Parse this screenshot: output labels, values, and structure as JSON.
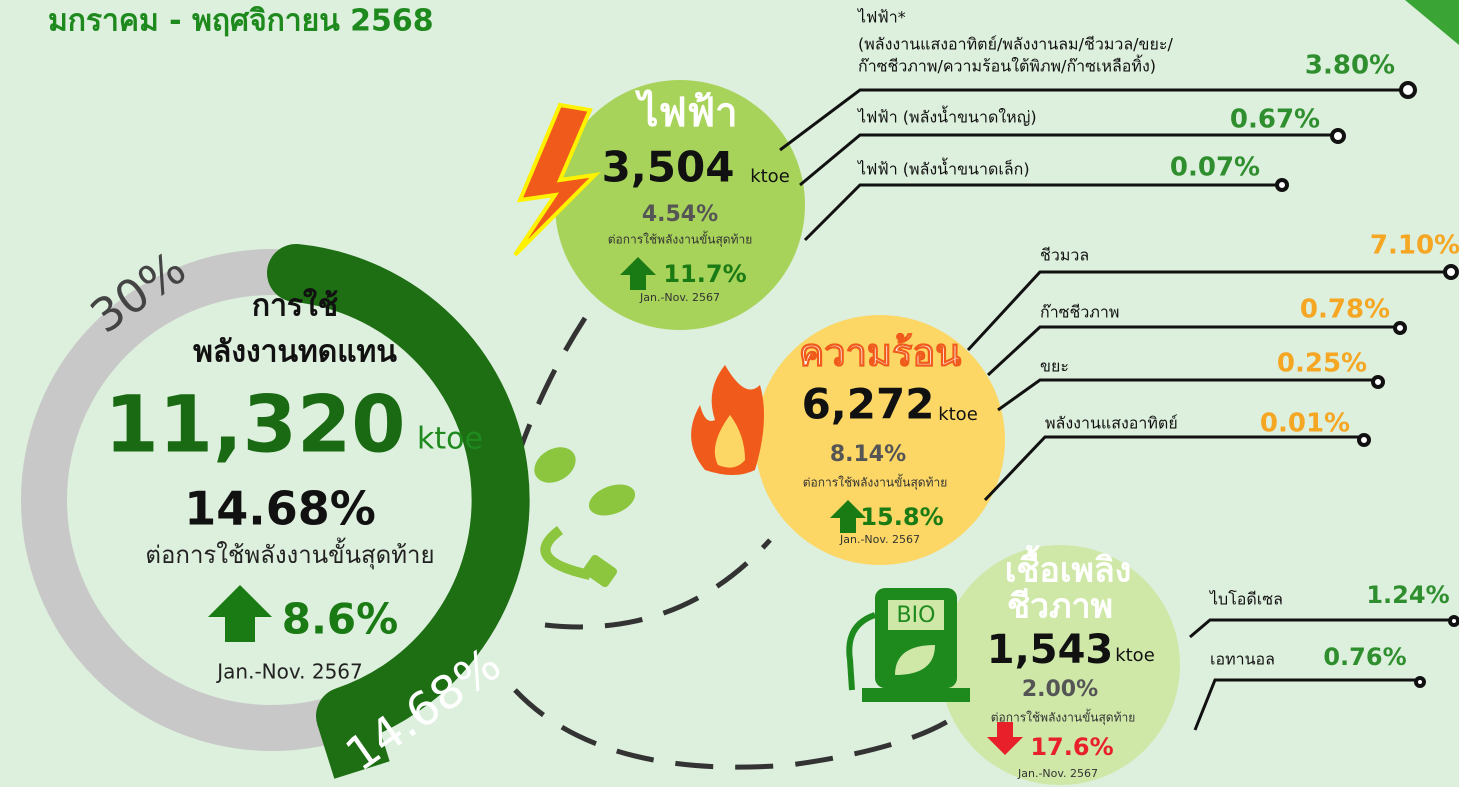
{
  "header": {
    "title": "มกราคม - พฤศจิกายน 2568"
  },
  "main": {
    "title_line1": "การใช้",
    "title_line2": "พลังงานทดแทน",
    "value": "11,320",
    "unit": "ktoe",
    "share": "14.68%",
    "share_label": "ต่อการใช้พลังงานขั้นสุดท้าย",
    "change": "8.6%",
    "period": "Jan.-Nov. 2567",
    "target_label": "30%",
    "ring_label": "14.68%"
  },
  "electricity": {
    "title": "ไฟฟ้า",
    "value": "3,504",
    "unit": "ktoe",
    "share": "4.54%",
    "share_label": "ต่อการใช้พลังงานขั้นสุดท้าย",
    "change": "11.7%",
    "period": "Jan.-Nov. 2567",
    "items": [
      {
        "label": [
          "ไฟฟ้า*",
          "(พลังงานแสงอาทิตย์/พลังงานลม/ชีวมวล/ขยะ/",
          "ก๊าซชีวภาพ/ความร้อนใต้พิภพ/ก๊าซเหลือทิ้ง)"
        ],
        "value": "3.80%"
      },
      {
        "label": [
          "ไฟฟ้า (พลังน้ำขนาดใหญ่)"
        ],
        "value": "0.67%"
      },
      {
        "label": [
          "ไฟฟ้า (พลังน้ำขนาดเล็ก)"
        ],
        "value": "0.07%"
      }
    ]
  },
  "heat": {
    "title": "ความร้อน",
    "value": "6,272",
    "unit": "ktoe",
    "share": "8.14%",
    "share_label": "ต่อการใช้พลังงานขั้นสุดท้าย",
    "change": "15.8%",
    "period": "Jan.-Nov. 2567",
    "items": [
      {
        "label": "ชีวมวล",
        "value": "7.10%"
      },
      {
        "label": "ก๊าซชีวภาพ",
        "value": "0.78%"
      },
      {
        "label": "ขยะ",
        "value": "0.25%"
      },
      {
        "label": "พลังงานแสงอาทิตย์",
        "value": "0.01%"
      }
    ]
  },
  "biofuel": {
    "title_line1": "เชื้อเพลิง",
    "title_line2": "ชีวภาพ",
    "icon_text": "BIO",
    "value": "1,543",
    "unit": "ktoe",
    "share": "2.00%",
    "share_label": "ต่อการใช้พลังงานขั้นสุดท้าย",
    "change": "17.6%",
    "period": "Jan.-Nov. 2567",
    "items": [
      {
        "label": "ไบโอดีเซล",
        "value": "1.24%"
      },
      {
        "label": "เอทานอล",
        "value": "0.76%"
      }
    ]
  }
}
